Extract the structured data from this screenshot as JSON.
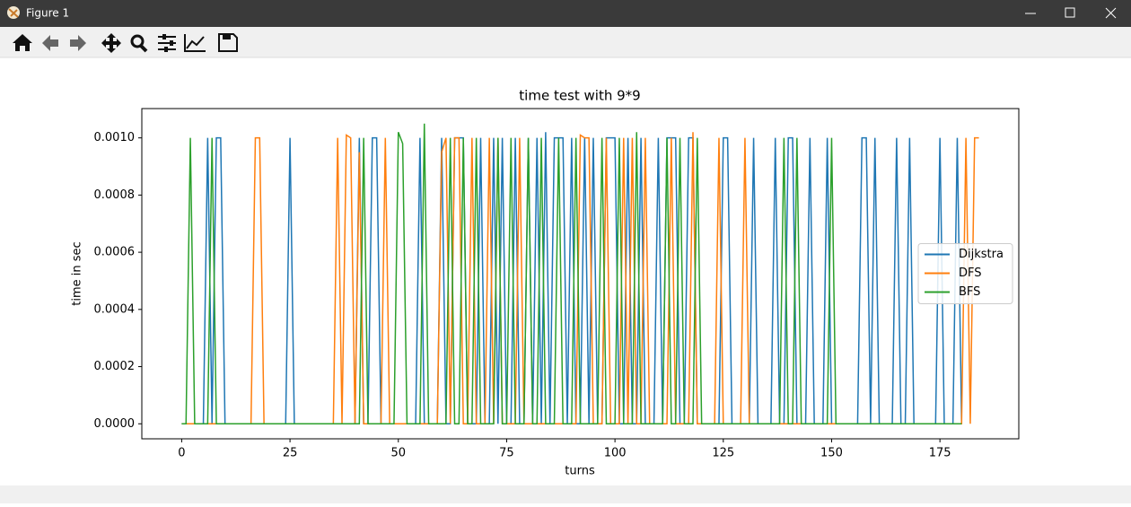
{
  "window": {
    "title": "Figure 1"
  },
  "chart_data": {
    "type": "line",
    "title": "time test with 9*9",
    "x_label": "turns",
    "y_label": "time in sec",
    "x": [
      0,
      1,
      2,
      3,
      4,
      5,
      6,
      7,
      8,
      9,
      10,
      11,
      12,
      13,
      14,
      15,
      16,
      17,
      18,
      19,
      20,
      21,
      22,
      23,
      24,
      25,
      26,
      27,
      28,
      29,
      30,
      31,
      32,
      33,
      34,
      35,
      36,
      37,
      38,
      39,
      40,
      41,
      42,
      43,
      44,
      45,
      46,
      47,
      48,
      49,
      50,
      51,
      52,
      53,
      54,
      55,
      56,
      57,
      58,
      59,
      60,
      61,
      62,
      63,
      64,
      65,
      66,
      67,
      68,
      69,
      70,
      71,
      72,
      73,
      74,
      75,
      76,
      77,
      78,
      79,
      80,
      81,
      82,
      83,
      84,
      85,
      86,
      87,
      88,
      89,
      90,
      91,
      92,
      93,
      94,
      95,
      96,
      97,
      98,
      99,
      100,
      101,
      102,
      103,
      104,
      105,
      106,
      107,
      108,
      109,
      110,
      111,
      112,
      113,
      114,
      115,
      116,
      117,
      118,
      119,
      120,
      121,
      122,
      123,
      124,
      125,
      126,
      127,
      128,
      129,
      130,
      131,
      132,
      133,
      134,
      135,
      136,
      137,
      138,
      139,
      140,
      141,
      142,
      143,
      144,
      145,
      146,
      147,
      148,
      149,
      150,
      151,
      152,
      153,
      154,
      155,
      156,
      157,
      158,
      159,
      160,
      161,
      162,
      163,
      164,
      165,
      166,
      167,
      168,
      169,
      170,
      171,
      172,
      173,
      174,
      175,
      176,
      177,
      178,
      179,
      180,
      181,
      182,
      183,
      184
    ],
    "series": [
      {
        "name": "Dijkstra",
        "color": "#1f77b4",
        "values": [
          0,
          0,
          0,
          0,
          0,
          0,
          0.001,
          0,
          0.001,
          0.001,
          0,
          0,
          0,
          0,
          0,
          0,
          0,
          0,
          0,
          0,
          0,
          0,
          0,
          0,
          0,
          0.001,
          0,
          0,
          0,
          0,
          0,
          0,
          0,
          0,
          0,
          0,
          0,
          0,
          0,
          0,
          0,
          0.001,
          0,
          0,
          0.001,
          0.001,
          0,
          0,
          0,
          0,
          0,
          0,
          0,
          0,
          0,
          0.001,
          0,
          0,
          0,
          0,
          0.001,
          0,
          0,
          0.001,
          0.001,
          0.001,
          0,
          0,
          0,
          0.001,
          0,
          0,
          0.001,
          0,
          0.001,
          0,
          0,
          0.001,
          0,
          0,
          0.001,
          0,
          0.001,
          0,
          0.00102,
          0,
          0.001,
          0.001,
          0.001,
          0,
          0.001,
          0,
          0,
          0.001,
          0,
          0.001,
          0,
          0,
          0.001,
          0.001,
          0.001,
          0,
          0,
          0.001,
          0,
          0,
          0.001,
          0,
          0,
          0,
          0.001,
          0,
          0.001,
          0.001,
          0.001,
          0,
          0,
          0.001,
          0.001,
          0,
          0,
          0,
          0,
          0,
          0,
          0.001,
          0.001,
          0,
          0,
          0,
          0,
          0,
          0.001,
          0,
          0,
          0,
          0,
          0.001,
          0,
          0,
          0.001,
          0.001,
          0,
          0,
          0,
          0.001,
          0,
          0,
          0,
          0.001,
          0,
          0,
          0,
          0,
          0,
          0,
          0,
          0.001,
          0.001,
          0,
          0.001,
          0,
          0,
          0,
          0,
          0.001,
          0,
          0,
          0.001,
          0,
          0,
          0,
          0,
          0,
          0,
          0.001,
          0,
          0,
          0,
          0.001,
          0,
          null,
          null,
          null,
          null
        ]
      },
      {
        "name": "DFS",
        "color": "#ff7f0e",
        "values": [
          0,
          0,
          0,
          0,
          0,
          0,
          0,
          0,
          0,
          0,
          0,
          0,
          0,
          0,
          0,
          0,
          0,
          0.001,
          0.001,
          0,
          0,
          0,
          0,
          0,
          0,
          0,
          0,
          0,
          0,
          0,
          0,
          0,
          0,
          0,
          0,
          0,
          0.001,
          0,
          0.00101,
          0.001,
          0,
          0.00095,
          0,
          0,
          0,
          0,
          0,
          0.001,
          0,
          0,
          0,
          0,
          0,
          0,
          0,
          0,
          0,
          0,
          0,
          0,
          0.00095,
          0.001,
          0,
          0.001,
          0.001,
          0,
          0,
          0.001,
          0,
          0,
          0,
          0.001,
          0,
          0.001,
          0,
          0,
          0,
          0,
          0.001,
          0,
          0,
          0,
          0,
          0,
          0,
          0,
          0,
          0,
          0,
          0,
          0,
          0,
          0.00101,
          0.001,
          0.001,
          0,
          0,
          0,
          0.001,
          0,
          0,
          0,
          0.001,
          0,
          0.001,
          0,
          0,
          0.001,
          0,
          0,
          0,
          0,
          0,
          0.001,
          0,
          0,
          0,
          0,
          0.00102,
          0,
          0,
          0,
          0,
          0,
          0.001,
          0,
          0,
          0,
          0,
          0,
          0.001,
          0,
          0,
          0,
          0,
          0,
          0,
          0,
          0,
          0,
          0,
          0,
          0,
          0,
          0,
          0,
          0,
          0,
          0,
          0,
          0,
          0,
          0,
          0,
          0,
          0,
          0,
          0,
          0,
          0,
          0,
          0,
          0,
          0,
          0,
          0,
          0,
          0,
          0,
          0,
          0,
          0,
          0,
          0,
          0,
          0,
          0,
          0,
          0,
          0,
          0,
          0.001,
          0,
          0.001,
          0.001
        ]
      },
      {
        "name": "BFS",
        "color": "#2ca02c",
        "values": [
          0,
          0,
          0.001,
          0,
          0,
          0,
          0,
          0.001,
          0,
          0,
          0,
          0,
          0,
          0,
          0,
          0,
          0,
          0,
          0,
          0,
          0,
          0,
          0,
          0,
          0,
          0,
          0,
          0,
          0,
          0,
          0,
          0,
          0,
          0,
          0,
          0,
          0,
          0,
          0,
          0,
          0,
          0,
          0.001,
          0,
          0,
          0,
          0,
          0,
          0,
          0,
          0.00102,
          0.00098,
          0,
          0,
          0,
          0,
          0.00105,
          0,
          0,
          0,
          0,
          0,
          0.001,
          0,
          0,
          0.001,
          0,
          0,
          0.001,
          0,
          0,
          0,
          0,
          0.001,
          0,
          0,
          0.001,
          0,
          0,
          0,
          0.001,
          0,
          0,
          0.001,
          0,
          0,
          0,
          0.001,
          0,
          0,
          0,
          0.001,
          0,
          0,
          0,
          0,
          0,
          0.001,
          0,
          0,
          0,
          0.001,
          0,
          0,
          0,
          0.00102,
          0,
          0,
          0,
          0,
          0,
          0,
          0.001,
          0,
          0,
          0.001,
          0,
          0,
          0,
          0.001,
          0,
          0,
          0,
          0,
          0,
          0,
          0,
          0,
          0,
          0,
          0,
          0,
          0,
          0,
          0,
          0,
          0,
          0,
          0,
          0.001,
          0,
          0,
          0.001,
          0,
          0,
          0,
          0,
          0,
          0,
          0,
          0.001,
          0,
          0,
          0,
          0,
          0,
          0,
          0,
          0,
          0,
          0,
          0,
          0,
          0,
          0,
          0,
          0,
          0,
          0,
          0,
          0,
          0,
          0,
          0,
          0,
          0,
          0,
          0,
          0,
          0,
          0,
          null,
          null,
          null,
          null
        ]
      }
    ],
    "xlim": [
      -9.2,
      193.2
    ],
    "ylim": [
      -5.25e-05,
      0.0011025
    ],
    "xticks": [
      0,
      25,
      50,
      75,
      100,
      125,
      150,
      175
    ],
    "yticks": [
      {
        "value": 0,
        "label": "0.0000"
      },
      {
        "value": 0.0002,
        "label": "0.0002"
      },
      {
        "value": 0.0004,
        "label": "0.0004"
      },
      {
        "value": 0.0006,
        "label": "0.0006"
      },
      {
        "value": 0.0008,
        "label": "0.0008"
      },
      {
        "value": 0.001,
        "label": "0.0010"
      }
    ],
    "legend": "center right",
    "grid": false
  }
}
